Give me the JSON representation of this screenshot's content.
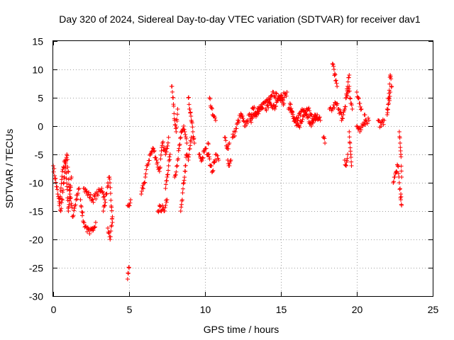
{
  "chart_data": {
    "type": "scatter",
    "title": "Day 320 of 2024, Sidereal Day-to-day VTEC variation (SDTVAR) for receiver dav1",
    "xlabel": "GPS time / hours",
    "ylabel": "SDTVAR / TECUs",
    "xlim": [
      0,
      25
    ],
    "ylim": [
      -30,
      15
    ],
    "x_ticks": [
      "0",
      "5",
      "10",
      "15",
      "20",
      "25"
    ],
    "y_ticks": [
      "15",
      "10",
      "5",
      "0",
      "-5",
      "-10",
      "-15",
      "-20",
      "-25",
      "-30"
    ],
    "grid": true,
    "marker": "+",
    "colors": {
      "series": "#ff0000",
      "grid": "#a0a0a0",
      "axis": "#000000"
    },
    "series": [
      {
        "name": "SDTVAR",
        "segments": [
          {
            "x": [
              0.0,
              0.3,
              0.5,
              0.7,
              0.9,
              1.1,
              1.3,
              1.5,
              1.7
            ],
            "y": [
              -7,
              -12,
              -15,
              -10,
              -5,
              -12,
              -16,
              -13,
              -11
            ]
          },
          {
            "x": [
              0.4,
              0.6,
              0.8,
              1.0,
              1.2
            ],
            "y": [
              -14,
              -8,
              -6,
              -15,
              -9
            ]
          },
          {
            "x": [
              1.8,
              2.0,
              2.2,
              2.4,
              2.6,
              2.8
            ],
            "y": [
              -13,
              -17,
              -18,
              -19,
              -18,
              -17
            ]
          },
          {
            "x": [
              2.0,
              2.3,
              2.6,
              2.9,
              3.2,
              3.4
            ],
            "y": [
              -11,
              -12,
              -13,
              -12,
              -11,
              -13
            ]
          },
          {
            "x": [
              3.3,
              3.5,
              3.7,
              3.9
            ],
            "y": [
              -15,
              -12,
              -9,
              -17
            ]
          },
          {
            "x": [
              3.6,
              3.75,
              3.9
            ],
            "y": [
              -18,
              -20,
              -16
            ]
          },
          {
            "x": [
              4.9,
              5.0,
              5.1
            ],
            "y": [
              -14,
              -14,
              -13
            ]
          },
          {
            "x": [
              4.9,
              4.95,
              5.0
            ],
            "y": [
              -27,
              -26,
              -25
            ]
          },
          {
            "x": [
              5.8,
              6.0,
              6.2,
              6.4,
              6.6,
              6.8,
              7.0,
              7.2,
              7.4,
              7.6
            ],
            "y": [
              -12,
              -10,
              -7,
              -5,
              -4,
              -6,
              -8,
              -3,
              -5,
              -2
            ]
          },
          {
            "x": [
              6.9,
              7.0,
              7.1,
              7.2,
              7.3,
              7.4,
              7.5
            ],
            "y": [
              -15,
              -14,
              -15,
              -14,
              -15,
              -14,
              -13
            ]
          },
          {
            "x": [
              7.4,
              7.5,
              7.6,
              7.7
            ],
            "y": [
              -11,
              -9,
              -7,
              -5
            ]
          },
          {
            "x": [
              7.8,
              7.9,
              8.0,
              8.1,
              8.2
            ],
            "y": [
              7,
              5,
              1,
              -1,
              3
            ]
          },
          {
            "x": [
              8.0,
              8.2,
              8.4,
              8.6,
              8.8
            ],
            "y": [
              -9,
              -6,
              -2,
              0,
              -3
            ]
          },
          {
            "x": [
              8.4,
              8.5,
              8.6,
              8.7
            ],
            "y": [
              -15,
              -13,
              -10,
              -8
            ]
          },
          {
            "x": [
              8.9,
              9.0,
              9.1,
              9.2,
              9.3
            ],
            "y": [
              5,
              3,
              1,
              -1,
              -3
            ]
          },
          {
            "x": [
              8.7,
              8.8,
              8.9,
              9.0,
              9.1
            ],
            "y": [
              -7,
              -5,
              -6,
              -4,
              -2
            ]
          },
          {
            "x": [
              9.6,
              9.8,
              10.0,
              10.2
            ],
            "y": [
              -5,
              -6,
              -4,
              -5
            ]
          },
          {
            "x": [
              10.2,
              10.35,
              10.5,
              10.7,
              10.9
            ],
            "y": [
              -3,
              -7,
              -8,
              -5,
              -6
            ]
          },
          {
            "x": [
              10.3,
              10.5,
              10.7
            ],
            "y": [
              5,
              2,
              1
            ]
          },
          {
            "x": [
              11.3,
              11.5,
              11.6
            ],
            "y": [
              -2,
              -4,
              -3
            ]
          },
          {
            "x": [
              11.5,
              11.6,
              11.7
            ],
            "y": [
              -6,
              -7,
              -6
            ]
          },
          {
            "x": [
              11.8,
              12.0,
              12.2,
              12.4,
              12.6,
              12.8,
              13.0,
              13.2,
              13.4,
              13.6,
              13.8
            ],
            "y": [
              -2,
              -1,
              1,
              2,
              0,
              1,
              2,
              3,
              2,
              3,
              4
            ]
          },
          {
            "x": [
              13.0,
              13.3,
              13.6,
              13.9,
              14.2,
              14.5,
              14.8,
              15.1,
              15.4
            ],
            "y": [
              1,
              2,
              3,
              4,
              5,
              6,
              5,
              5,
              6
            ]
          },
          {
            "x": [
              14.0,
              14.3,
              14.6,
              14.9,
              15.2
            ],
            "y": [
              3,
              4,
              3,
              5,
              4
            ]
          },
          {
            "x": [
              15.5,
              15.8,
              16.1,
              16.4,
              16.7,
              17.0,
              17.3,
              17.6
            ],
            "y": [
              3,
              2,
              1,
              3,
              2,
              0,
              2,
              1
            ]
          },
          {
            "x": [
              15.6,
              15.9,
              16.2,
              16.5,
              16.8,
              17.1,
              17.4
            ],
            "y": [
              4,
              1,
              0,
              2,
              3,
              1,
              2
            ]
          },
          {
            "x": [
              17.8,
              17.9
            ],
            "y": [
              -2,
              -3
            ]
          },
          {
            "x": [
              18.2,
              18.4,
              18.6,
              18.8,
              19.0
            ],
            "y": [
              3,
              3,
              4,
              3,
              2
            ]
          },
          {
            "x": [
              18.4,
              18.5,
              18.6,
              18.7
            ],
            "y": [
              11,
              10,
              8,
              7
            ]
          },
          {
            "x": [
              19.0,
              19.1,
              19.2,
              19.3,
              19.4,
              19.5
            ],
            "y": [
              1,
              2,
              3,
              5,
              7,
              9
            ]
          },
          {
            "x": [
              19.3,
              19.4,
              19.5,
              19.6,
              19.7
            ],
            "y": [
              5,
              6,
              7,
              4,
              3
            ]
          },
          {
            "x": [
              19.2,
              19.3,
              19.4
            ],
            "y": [
              -6,
              -7,
              -5
            ]
          },
          {
            "x": [
              19.5,
              19.55,
              19.6,
              19.65
            ],
            "y": [
              -1,
              -3,
              -5,
              -7
            ]
          },
          {
            "x": [
              20.0,
              20.2,
              20.4,
              20.6,
              20.8
            ],
            "y": [
              0,
              -1,
              0,
              1,
              1
            ]
          },
          {
            "x": [
              20.0,
              20.1,
              20.2,
              20.3
            ],
            "y": [
              6,
              5,
              4,
              3
            ]
          },
          {
            "x": [
              20.5,
              20.6
            ],
            "y": [
              2,
              1
            ]
          },
          {
            "x": [
              21.4,
              21.6,
              21.8
            ],
            "y": [
              1,
              0,
              1
            ]
          },
          {
            "x": [
              22.0,
              22.1,
              22.2,
              22.3
            ],
            "y": [
              2,
              5,
              9,
              7
            ]
          },
          {
            "x": [
              22.0,
              22.1,
              22.2
            ],
            "y": [
              3,
              4,
              6
            ]
          },
          {
            "x": [
              22.4,
              22.5,
              22.6,
              22.7,
              22.8,
              22.9
            ],
            "y": [
              -10,
              -9,
              -8,
              -7,
              -10,
              -13
            ]
          },
          {
            "x": [
              22.8,
              22.85,
              22.9,
              22.95
            ],
            "y": [
              -1,
              -3,
              -5,
              -9
            ]
          },
          {
            "x": [
              22.9,
              22.95
            ],
            "y": [
              -12,
              -14
            ]
          }
        ]
      }
    ]
  }
}
